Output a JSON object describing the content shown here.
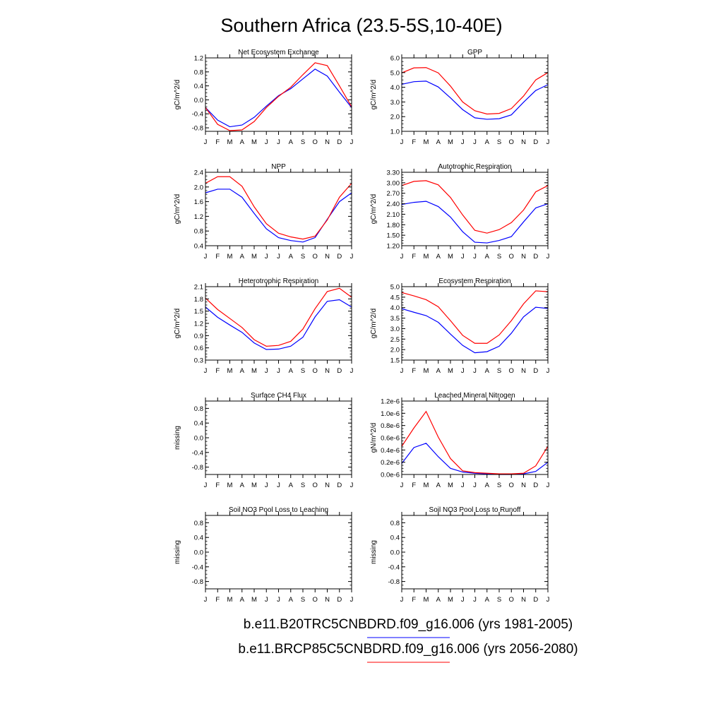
{
  "page_title": "Southern Africa (23.5-5S,10-40E)",
  "months": [
    "J",
    "F",
    "M",
    "A",
    "M",
    "J",
    "J",
    "A",
    "S",
    "O",
    "N",
    "D",
    "J"
  ],
  "legend": [
    {
      "label": "b.e11.B20TRC5CNBDRD.f09_g16.006 (yrs 1981-2005)",
      "color": "#0000ff"
    },
    {
      "label": "b.e11.BRCP85C5CNBDRD.f09_g16.006 (yrs 2056-2080)",
      "color": "#ff0000"
    }
  ],
  "colors": {
    "series1": "#0000ff",
    "series2": "#ff0000",
    "axis": "#000000"
  },
  "chart_data": [
    {
      "type": "line",
      "title": "Net Ecosystem Exchange",
      "ylabel": "gC/m^2/d",
      "ylim": [
        -0.9,
        1.2
      ],
      "yticks": [
        "1.2",
        "0.8",
        "0.4",
        "0.0",
        "-0.4",
        "-0.8"
      ],
      "ytick_values": [
        1.2,
        0.8,
        0.4,
        0.0,
        -0.4,
        -0.8
      ],
      "series": [
        {
          "values": [
            -0.22,
            -0.58,
            -0.77,
            -0.72,
            -0.5,
            -0.18,
            0.12,
            0.32,
            0.6,
            0.88,
            0.68,
            0.22,
            -0.22
          ]
        },
        {
          "values": [
            -0.22,
            -0.7,
            -0.88,
            -0.86,
            -0.62,
            -0.22,
            0.1,
            0.36,
            0.72,
            1.06,
            0.98,
            0.4,
            -0.2
          ]
        }
      ]
    },
    {
      "type": "line",
      "title": "GPP",
      "ylabel": "gC/m^2/d",
      "ylim": [
        1.0,
        6.0
      ],
      "yticks": [
        "6.0",
        "5.0",
        "4.0",
        "3.0",
        "2.0",
        "1.0"
      ],
      "ytick_values": [
        6.0,
        5.0,
        4.0,
        3.0,
        2.0,
        1.0
      ],
      "series": [
        {
          "values": [
            4.2,
            4.38,
            4.42,
            4.02,
            3.28,
            2.48,
            1.92,
            1.82,
            1.86,
            2.12,
            2.98,
            3.78,
            4.18
          ]
        },
        {
          "values": [
            4.98,
            5.32,
            5.34,
            4.98,
            4.08,
            3.0,
            2.4,
            2.18,
            2.22,
            2.55,
            3.4,
            4.5,
            5.0
          ]
        }
      ]
    },
    {
      "type": "line",
      "title": "NPP",
      "ylabel": "gC/m^2/d",
      "ylim": [
        0.4,
        2.4
      ],
      "yticks": [
        "2.4",
        "2.0",
        "1.6",
        "1.2",
        "0.8",
        "0.4"
      ],
      "ytick_values": [
        2.4,
        2.0,
        1.6,
        1.2,
        0.8,
        0.4
      ],
      "series": [
        {
          "values": [
            1.84,
            1.94,
            1.94,
            1.72,
            1.28,
            0.86,
            0.62,
            0.54,
            0.5,
            0.62,
            1.12,
            1.6,
            1.84
          ]
        },
        {
          "values": [
            2.1,
            2.28,
            2.28,
            2.02,
            1.46,
            1.0,
            0.74,
            0.64,
            0.58,
            0.66,
            1.1,
            1.72,
            2.1
          ]
        }
      ]
    },
    {
      "type": "line",
      "title": "Autotrophic Respiration",
      "ylabel": "gC/m^2/d",
      "ylim": [
        1.2,
        3.3
      ],
      "yticks": [
        "3.30",
        "3.00",
        "2.70",
        "2.40",
        "2.10",
        "1.80",
        "1.50",
        "1.20"
      ],
      "ytick_values": [
        3.3,
        3.0,
        2.7,
        2.4,
        2.1,
        1.8,
        1.5,
        1.2
      ],
      "series": [
        {
          "values": [
            2.38,
            2.44,
            2.47,
            2.32,
            2.02,
            1.6,
            1.3,
            1.28,
            1.35,
            1.46,
            1.88,
            2.28,
            2.4
          ]
        },
        {
          "values": [
            2.92,
            3.04,
            3.06,
            2.94,
            2.58,
            2.08,
            1.64,
            1.56,
            1.66,
            1.86,
            2.22,
            2.74,
            2.92
          ]
        }
      ]
    },
    {
      "type": "line",
      "title": "Heterotrophic Respiration",
      "ylabel": "gC/m^2/d",
      "ylim": [
        0.3,
        2.1
      ],
      "yticks": [
        "2.1",
        "1.8",
        "1.5",
        "1.2",
        "0.9",
        "0.6",
        "0.3"
      ],
      "ytick_values": [
        2.1,
        1.8,
        1.5,
        1.2,
        0.9,
        0.6,
        0.3
      ],
      "series": [
        {
          "values": [
            1.6,
            1.35,
            1.16,
            0.98,
            0.72,
            0.56,
            0.57,
            0.64,
            0.86,
            1.36,
            1.74,
            1.78,
            1.6
          ]
        },
        {
          "values": [
            1.82,
            1.54,
            1.32,
            1.1,
            0.8,
            0.64,
            0.66,
            0.76,
            1.06,
            1.56,
            1.98,
            2.06,
            1.84
          ]
        }
      ]
    },
    {
      "type": "line",
      "title": "Ecosystem Respiration",
      "ylabel": "gC/m^2/d",
      "ylim": [
        1.5,
        5.0
      ],
      "yticks": [
        "5.0",
        "4.5",
        "4.0",
        "3.5",
        "3.0",
        "2.5",
        "2.0",
        "1.5"
      ],
      "ytick_values": [
        5.0,
        4.5,
        4.0,
        3.5,
        3.0,
        2.5,
        2.0,
        1.5
      ],
      "series": [
        {
          "values": [
            3.95,
            3.78,
            3.62,
            3.3,
            2.74,
            2.2,
            1.85,
            1.9,
            2.16,
            2.78,
            3.56,
            4.02,
            3.96
          ]
        },
        {
          "values": [
            4.72,
            4.56,
            4.38,
            4.04,
            3.38,
            2.68,
            2.3,
            2.3,
            2.7,
            3.38,
            4.18,
            4.8,
            4.76
          ]
        }
      ]
    },
    {
      "type": "line",
      "title": "Surface CH4 Flux",
      "ylabel": "missing",
      "ylim": [
        -1.0,
        1.0
      ],
      "yticks": [
        "0.8",
        "0.4",
        "0.0",
        "-0.4",
        "-0.8"
      ],
      "ytick_values": [
        0.8,
        0.4,
        0.0,
        -0.4,
        -0.8
      ],
      "series": []
    },
    {
      "type": "line",
      "title": "Leached Mineral Nitrogen",
      "ylabel": "gN/m^2/d",
      "ylim": [
        0,
        1.2e-06
      ],
      "yticks": [
        "1.2e-6",
        "1.0e-6",
        "0.8e-6",
        "0.6e-6",
        "0.4e-6",
        "0.2e-6",
        "0.0e-6"
      ],
      "ytick_values": [
        1.2e-06,
        1e-06,
        8e-07,
        6e-07,
        4e-07,
        2e-07,
        0.0
      ],
      "series": [
        {
          "values": [
            1.8e-07,
            4.4e-07,
            5.1e-07,
            2.9e-07,
            1e-07,
            4e-08,
            2e-08,
            1e-08,
            0,
            0,
            1e-08,
            5e-08,
            2e-07
          ]
        },
        {
          "values": [
            4.6e-07,
            7.6e-07,
            1.03e-06,
            6.1e-07,
            2.6e-07,
            6e-08,
            3e-08,
            2e-08,
            1e-08,
            1e-08,
            2e-08,
            1.4e-07,
            4.6e-07
          ]
        }
      ]
    },
    {
      "type": "line",
      "title": "Soil NO3 Pool Loss to Leaching",
      "ylabel": "missing",
      "ylim": [
        -1.0,
        1.0
      ],
      "yticks": [
        "0.8",
        "0.4",
        "0.0",
        "-0.4",
        "-0.8"
      ],
      "ytick_values": [
        0.8,
        0.4,
        0.0,
        -0.4,
        -0.8
      ],
      "series": []
    },
    {
      "type": "line",
      "title": "Soil NO3 Pool Loss to Runoff",
      "ylabel": "missing",
      "ylim": [
        -1.0,
        1.0
      ],
      "yticks": [
        "0.8",
        "0.4",
        "0.0",
        "-0.4",
        "-0.8"
      ],
      "ytick_values": [
        0.8,
        0.4,
        0.0,
        -0.4,
        -0.8
      ],
      "series": []
    }
  ]
}
